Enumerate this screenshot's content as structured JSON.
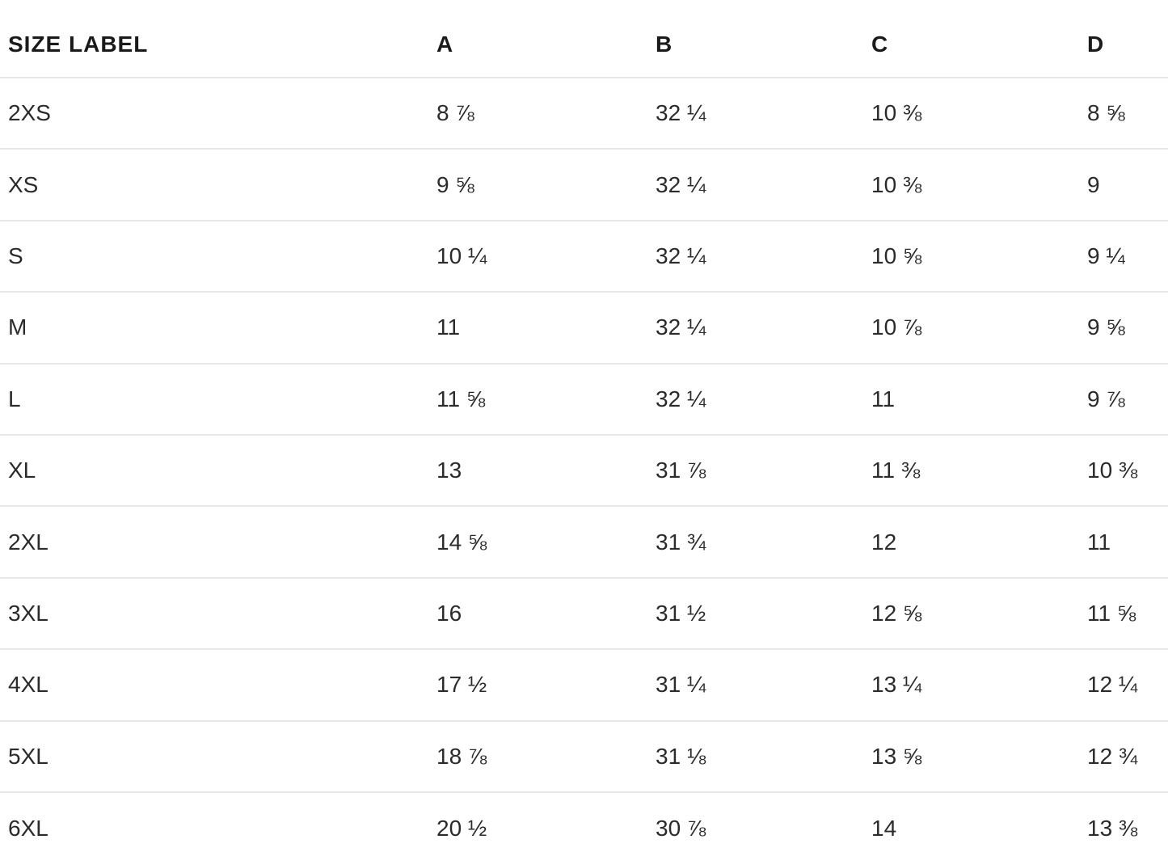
{
  "page": {
    "background_color": "#ffffff",
    "text_color": "#2b2b2b",
    "divider_color": "#e8e8e8"
  },
  "table": {
    "columns": [
      "SIZE LABEL",
      "A",
      "B",
      "C",
      "D"
    ],
    "rows": [
      {
        "label": "2XS",
        "a": "8 ⅞",
        "b": "32 ¼",
        "c": "10 ⅜",
        "d": "8 ⅝"
      },
      {
        "label": "XS",
        "a": "9 ⅝",
        "b": "32 ¼",
        "c": "10 ⅜",
        "d": "9"
      },
      {
        "label": "S",
        "a": "10 ¼",
        "b": "32 ¼",
        "c": "10 ⅝",
        "d": "9 ¼"
      },
      {
        "label": "M",
        "a": "11",
        "b": "32 ¼",
        "c": "10 ⅞",
        "d": "9 ⅝"
      },
      {
        "label": "L",
        "a": "11 ⅝",
        "b": "32 ¼",
        "c": "11",
        "d": "9 ⅞"
      },
      {
        "label": "XL",
        "a": "13",
        "b": "31 ⅞",
        "c": "11 ⅜",
        "d": "10 ⅜"
      },
      {
        "label": "2XL",
        "a": "14 ⅝",
        "b": "31 ¾",
        "c": "12",
        "d": "11"
      },
      {
        "label": "3XL",
        "a": "16",
        "b": "31 ½",
        "c": "12 ⅝",
        "d": "11 ⅝"
      },
      {
        "label": "4XL",
        "a": "17 ½",
        "b": "31 ¼",
        "c": "13 ¼",
        "d": "12 ¼"
      },
      {
        "label": "5XL",
        "a": "18 ⅞",
        "b": "31 ⅛",
        "c": "13 ⅝",
        "d": "12 ¾"
      },
      {
        "label": "6XL",
        "a": "20 ½",
        "b": "30 ⅞",
        "c": "14",
        "d": "13 ⅜"
      }
    ]
  }
}
